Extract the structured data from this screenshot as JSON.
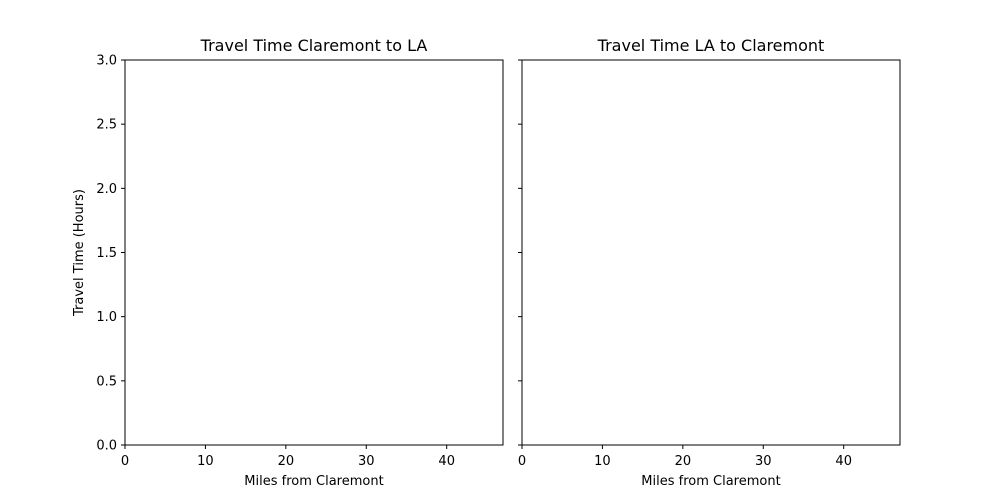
{
  "chart_data": [
    {
      "type": "line",
      "title": "Travel Time Claremont to LA",
      "xlabel": "Miles from Claremont",
      "ylabel": "Travel Time (Hours)",
      "xlim": [
        0,
        47
      ],
      "ylim": [
        0,
        3
      ],
      "xticks": [
        0,
        10,
        20,
        30,
        40
      ],
      "yticks": [
        0.0,
        0.5,
        1.0,
        1.5,
        2.0,
        2.5,
        3.0
      ],
      "ytick_labels": [
        "0.0",
        "0.5",
        "1.0",
        "1.5",
        "2.0",
        "2.5",
        "3.0"
      ],
      "show_ytick_labels": true,
      "grid": false,
      "series": []
    },
    {
      "type": "line",
      "title": "Travel Time LA to Claremont",
      "xlabel": "Miles from Claremont",
      "ylabel": "",
      "xlim": [
        0,
        47
      ],
      "ylim": [
        0,
        3
      ],
      "xticks": [
        0,
        10,
        20,
        30,
        40
      ],
      "yticks": [
        0.0,
        0.5,
        1.0,
        1.5,
        2.0,
        2.5,
        3.0
      ],
      "ytick_labels": [
        "0.0",
        "0.5",
        "1.0",
        "1.5",
        "2.0",
        "2.5",
        "3.0"
      ],
      "show_ytick_labels": false,
      "grid": false,
      "series": []
    }
  ],
  "colors": {
    "background": "#ffffff",
    "axes": "#000000"
  }
}
